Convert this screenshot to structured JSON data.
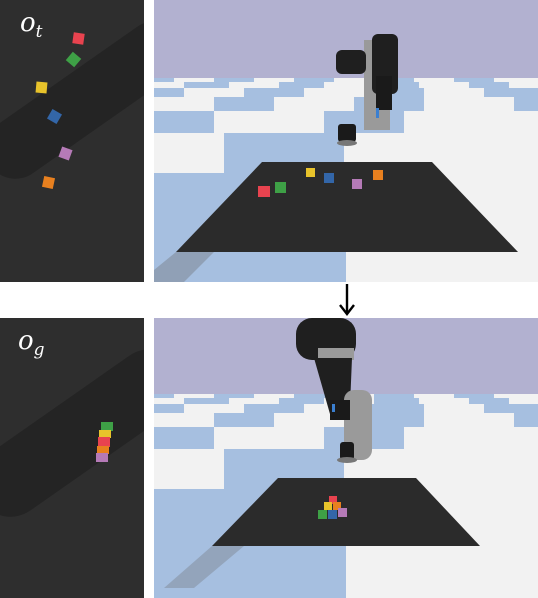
{
  "top_panel": {
    "label_main": "o",
    "label_sub": "t"
  },
  "bottom_panel": {
    "label_main": "o",
    "label_sub": "g"
  },
  "colors": {
    "red": "#e8434f",
    "green": "#3ea046",
    "yellow": "#e8c32b",
    "blue": "#3366a8",
    "pink": "#b57ab7",
    "orange": "#e8801f",
    "sky": "#b2b1d0",
    "floor_blue": "#a6bfe0",
    "floor_white": "#f2f2f2",
    "table": "#2b2b2b"
  }
}
